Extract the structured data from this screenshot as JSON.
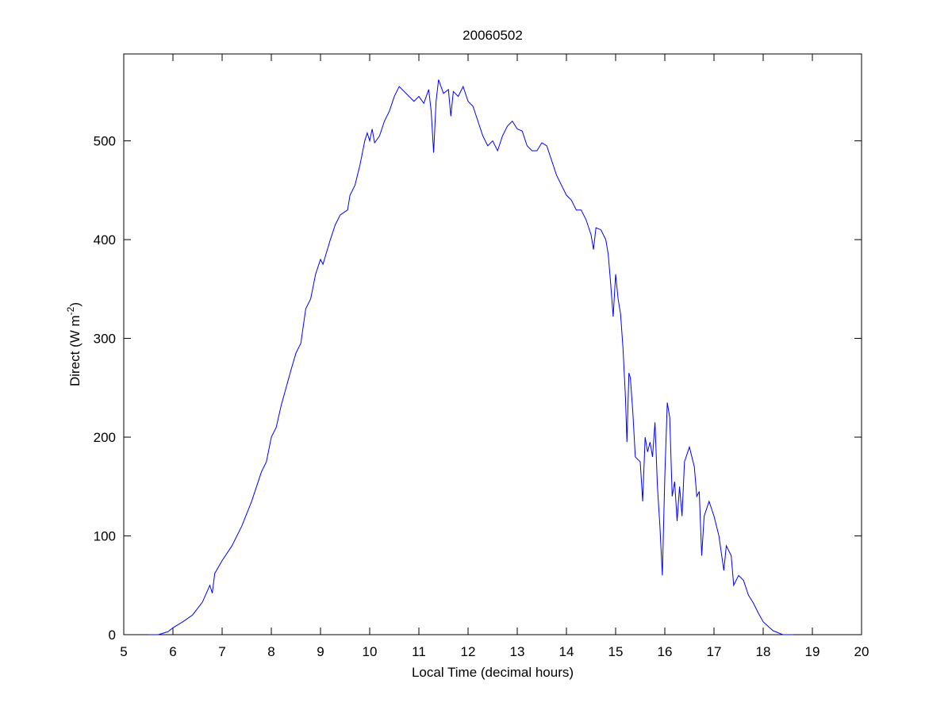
{
  "chart_data": {
    "type": "line",
    "title": "20060502",
    "xlabel": "Local Time (decimal hours)",
    "ylabel": [
      "Direct (W m",
      "-2",
      ")"
    ],
    "xlim": [
      5,
      20
    ],
    "xticks": [
      5,
      6,
      7,
      8,
      9,
      10,
      11,
      12,
      13,
      14,
      15,
      16,
      17,
      18,
      19,
      20
    ],
    "ylim": [
      0,
      588
    ],
    "yticks": [
      0,
      100,
      200,
      300,
      400,
      500
    ],
    "grid": false,
    "series": [
      {
        "color": "#0000ff",
        "x": [
          5.5,
          5.7,
          5.9,
          6.0,
          6.2,
          6.4,
          6.6,
          6.75,
          6.8,
          6.85,
          7.0,
          7.2,
          7.4,
          7.6,
          7.8,
          7.9,
          8.0,
          8.1,
          8.2,
          8.3,
          8.4,
          8.5,
          8.6,
          8.7,
          8.8,
          8.9,
          9.0,
          9.05,
          9.2,
          9.3,
          9.4,
          9.55,
          9.6,
          9.7,
          9.8,
          9.9,
          9.95,
          10.0,
          10.05,
          10.1,
          10.2,
          10.3,
          10.4,
          10.5,
          10.6,
          10.7,
          10.8,
          10.9,
          11.0,
          11.1,
          11.2,
          11.25,
          11.3,
          11.35,
          11.4,
          11.5,
          11.6,
          11.65,
          11.7,
          11.8,
          11.9,
          12.0,
          12.1,
          12.2,
          12.3,
          12.4,
          12.5,
          12.6,
          12.7,
          12.8,
          12.9,
          13.0,
          13.1,
          13.2,
          13.3,
          13.4,
          13.5,
          13.6,
          13.7,
          13.8,
          13.9,
          14.0,
          14.1,
          14.2,
          14.3,
          14.4,
          14.5,
          14.55,
          14.6,
          14.7,
          14.8,
          14.85,
          14.9,
          14.95,
          15.0,
          15.05,
          15.1,
          15.15,
          15.2,
          15.23,
          15.27,
          15.3,
          15.35,
          15.4,
          15.5,
          15.55,
          15.6,
          15.65,
          15.7,
          15.75,
          15.8,
          15.85,
          15.9,
          15.95,
          16.0,
          16.05,
          16.1,
          16.15,
          16.2,
          16.25,
          16.3,
          16.35,
          16.4,
          16.5,
          16.6,
          16.65,
          16.7,
          16.75,
          16.8,
          16.9,
          17.0,
          17.1,
          17.2,
          17.25,
          17.35,
          17.4,
          17.5,
          17.6,
          17.7,
          17.8,
          17.9,
          18.0,
          18.2,
          18.4,
          18.6
        ],
        "values": [
          0,
          0,
          3,
          7,
          13,
          20,
          33,
          50,
          42,
          62,
          75,
          90,
          110,
          135,
          165,
          175,
          200,
          210,
          232,
          250,
          268,
          285,
          295,
          330,
          340,
          365,
          380,
          375,
          400,
          415,
          425,
          430,
          445,
          455,
          475,
          500,
          508,
          500,
          512,
          498,
          505,
          520,
          530,
          545,
          555,
          550,
          545,
          540,
          545,
          538,
          552,
          530,
          488,
          540,
          562,
          548,
          552,
          525,
          550,
          545,
          555,
          540,
          535,
          520,
          505,
          495,
          500,
          490,
          505,
          515,
          520,
          512,
          510,
          495,
          490,
          490,
          498,
          495,
          480,
          465,
          455,
          445,
          440,
          430,
          430,
          420,
          405,
          390,
          412,
          410,
          400,
          385,
          355,
          322,
          365,
          340,
          325,
          290,
          240,
          195,
          265,
          260,
          225,
          180,
          175,
          135,
          200,
          185,
          195,
          180,
          215,
          150,
          110,
          60,
          160,
          235,
          220,
          140,
          155,
          115,
          150,
          120,
          175,
          190,
          170,
          140,
          145,
          80,
          120,
          135,
          120,
          100,
          65,
          90,
          80,
          50,
          60,
          55,
          40,
          32,
          22,
          13,
          4,
          0,
          0
        ]
      }
    ]
  }
}
